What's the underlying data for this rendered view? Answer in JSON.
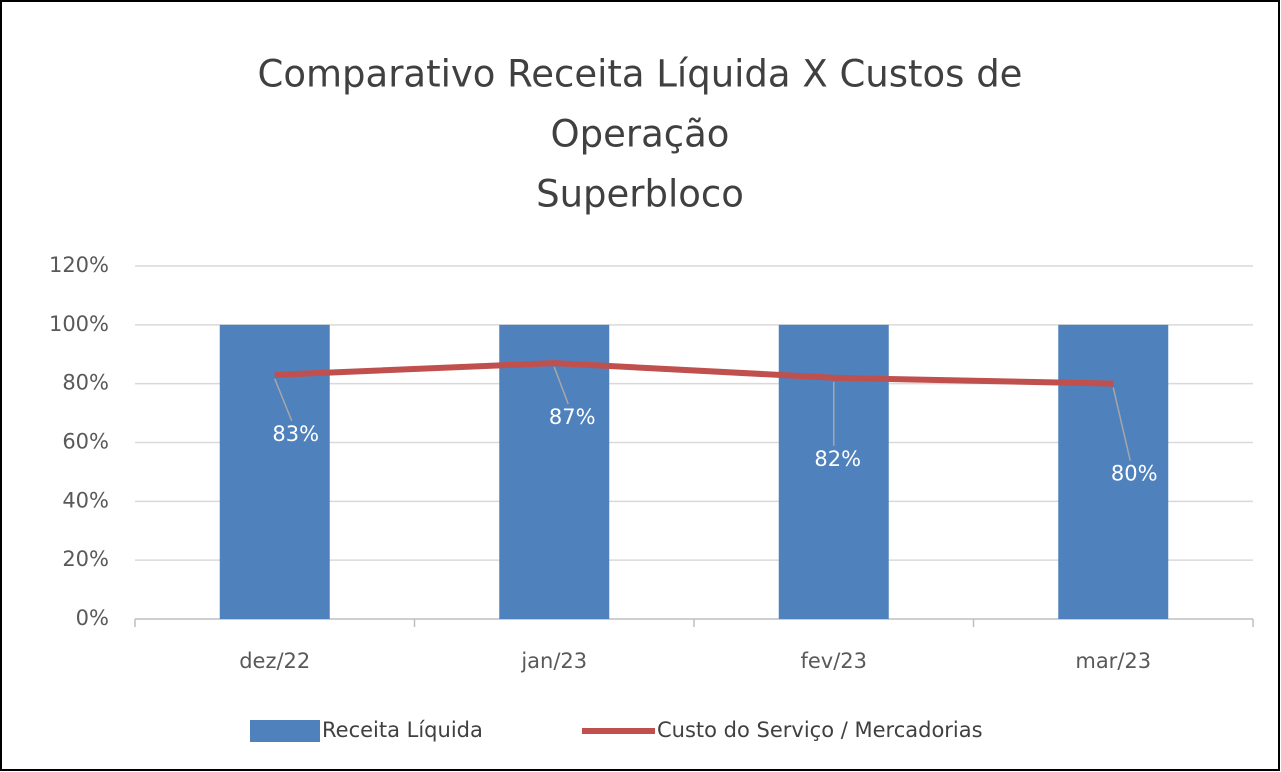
{
  "chart_data": {
    "type": "bar_line",
    "title": [
      "Comparativo Receita Líquida X Custos de",
      "Operação",
      "Superbloco"
    ],
    "categories": [
      "dez/22",
      "jan/23",
      "fev/23",
      "mar/23"
    ],
    "series": [
      {
        "name": "Receita Líquida",
        "type": "bar",
        "color": "#4f81bd",
        "values": [
          100,
          100,
          100,
          100
        ]
      },
      {
        "name": "Custo do Serviço / Mercadorias",
        "type": "line",
        "color": "#c0504d",
        "values": [
          83,
          87,
          82,
          80
        ],
        "value_labels": [
          "83%",
          "87%",
          "82%",
          "80%"
        ]
      }
    ],
    "ylim": [
      0,
      120
    ],
    "yticks": [
      {
        "value": 0,
        "label": "0%"
      },
      {
        "value": 20,
        "label": "20%"
      },
      {
        "value": 40,
        "label": "40%"
      },
      {
        "value": 60,
        "label": "60%"
      },
      {
        "value": 80,
        "label": "80%"
      },
      {
        "value": 100,
        "label": "100%"
      },
      {
        "value": 120,
        "label": "120%"
      }
    ],
    "grid": true,
    "legend": "bottom"
  }
}
